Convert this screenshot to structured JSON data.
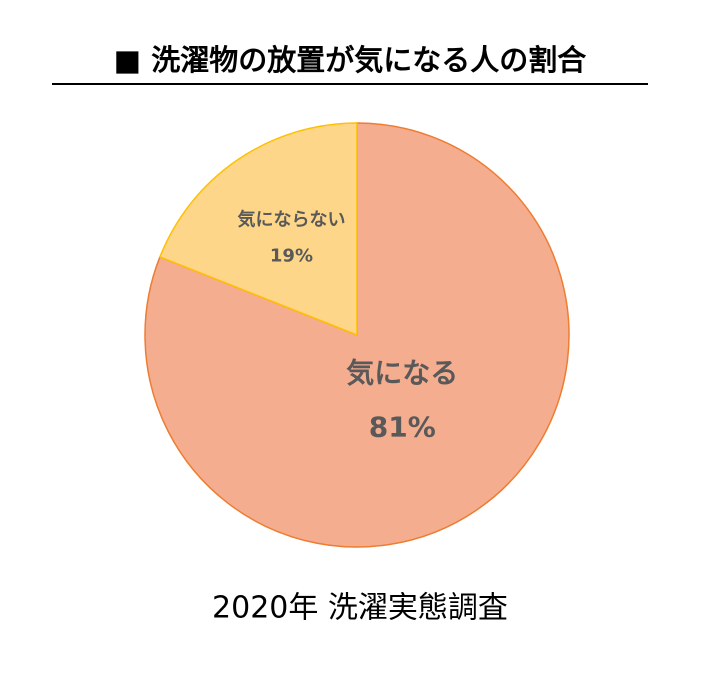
{
  "chart_data": {
    "type": "pie",
    "title": "■ 洗濯物の放置が気になる人の割合",
    "categories": [
      "気になる",
      "気にならない"
    ],
    "values": [
      81,
      19
    ],
    "value_labels": [
      "81%",
      "19%"
    ],
    "colors": [
      "#f5ad90",
      "#fed68a"
    ],
    "edge_colors": [
      "#ed7d31",
      "#ffc000"
    ],
    "source": "2020年 洗濯実態調査"
  }
}
